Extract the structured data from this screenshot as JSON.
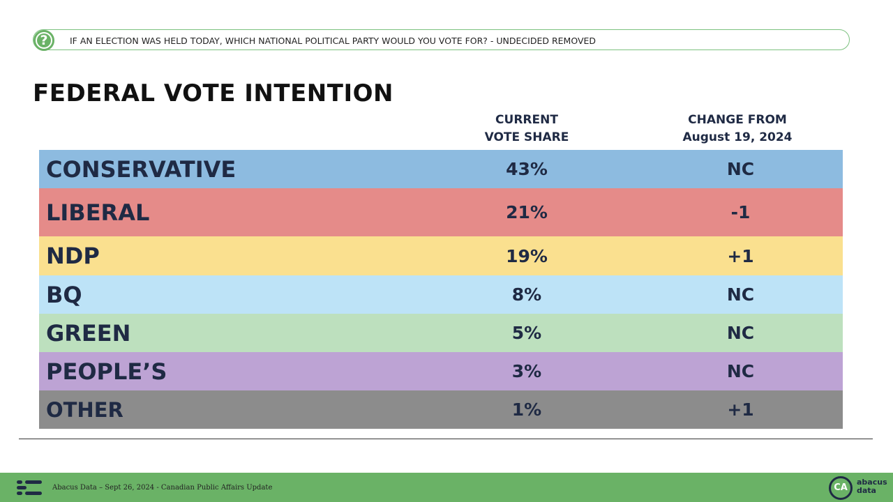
{
  "question": "IF AN ELECTION WAS HELD TODAY, WHICH NATIONAL POLITICAL PARTY WOULD YOU VOTE FOR? - UNDECIDED REMOVED",
  "question_icon": "?",
  "title": "FEDERAL VOTE INTENTION",
  "table": {
    "columns": [
      [
        "CURRENT",
        "VOTE SHARE"
      ],
      [
        "CHANGE FROM",
        "August 19, 2024"
      ]
    ],
    "rows": [
      [
        "CONSERVATIVE",
        "43%",
        "NC"
      ],
      [
        "LIBERAL",
        "21%",
        "-1"
      ],
      [
        "NDP",
        "19%",
        "+1"
      ],
      [
        "BQ",
        "8%",
        "NC"
      ],
      [
        "GREEN",
        "5%",
        "NC"
      ],
      [
        "PEOPLE’S",
        "3%",
        "NC"
      ],
      [
        "OTHER",
        "1%",
        "+1"
      ]
    ]
  },
  "footer": "Abacus Data – Sept 26, 2024 - Canadian Public Affairs Update",
  "logo": {
    "badge": "CA",
    "brand": [
      "abacus",
      "data"
    ]
  }
}
